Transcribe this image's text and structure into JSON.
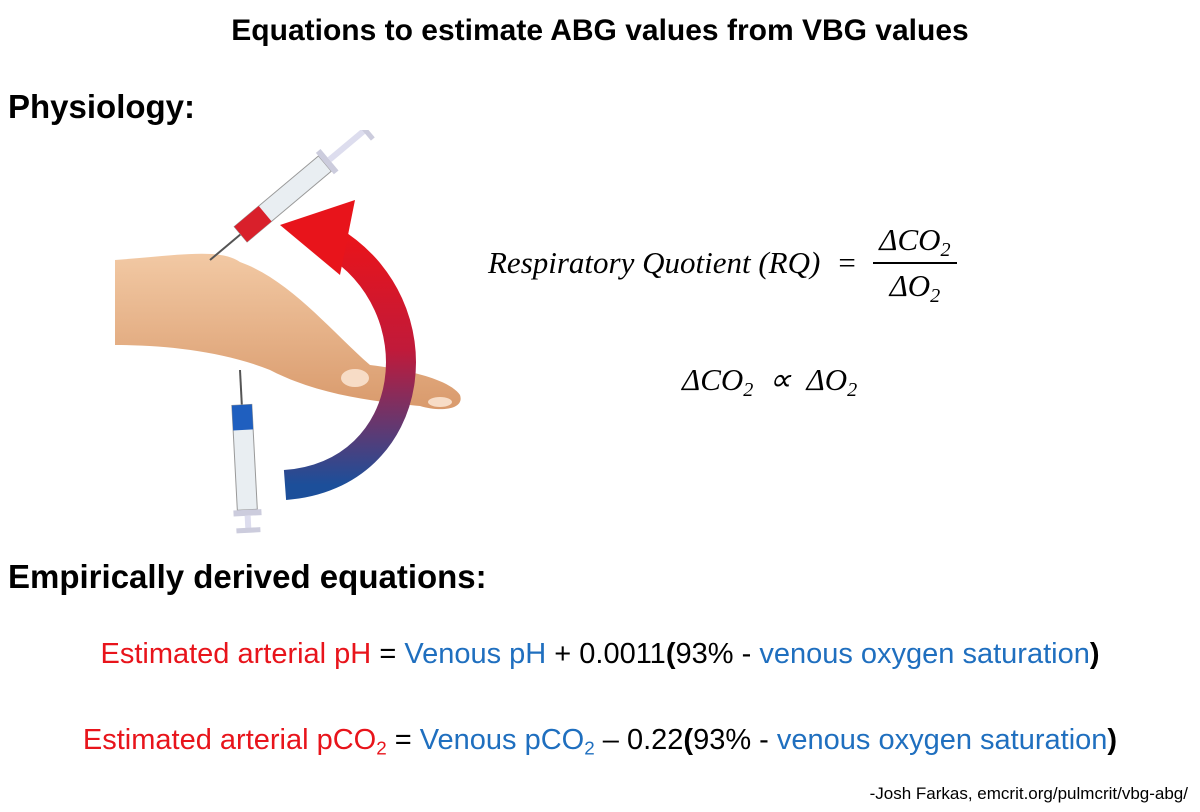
{
  "title": "Equations to estimate ABG values from VBG values",
  "physiology": {
    "heading": "Physiology:",
    "rq": {
      "lhs": [
        {
          "text": "Respiratory Quotient (RQ)"
        }
      ],
      "equals": "=",
      "numerator": [
        {
          "text": "ΔCO"
        },
        {
          "text": "2",
          "sub": true
        }
      ],
      "denominator": [
        {
          "text": "ΔO"
        },
        {
          "text": "2",
          "sub": true
        }
      ]
    },
    "proportionality": [
      {
        "text": "ΔCO"
      },
      {
        "text": "2",
        "sub": true
      },
      {
        "text": "  ∝  "
      },
      {
        "text": "ΔO"
      },
      {
        "text": "2",
        "sub": true
      }
    ]
  },
  "empirical": {
    "heading": "Empirically derived equations:",
    "equations": [
      {
        "parts": [
          {
            "text": "Estimated arterial pH",
            "color": "#e8141b"
          },
          {
            "text": " = ",
            "color": "#000000"
          },
          {
            "text": "Venous pH",
            "color": "#1f6fbf"
          },
          {
            "text": " + 0.0011",
            "color": "#000000"
          },
          {
            "text": "(",
            "color": "#000000",
            "bold": true
          },
          {
            "text": "93% - ",
            "color": "#000000"
          },
          {
            "text": "venous oxygen saturation",
            "color": "#1f6fbf"
          },
          {
            "text": ")",
            "color": "#000000",
            "bold": true
          }
        ]
      },
      {
        "parts": [
          {
            "text": "Estimated arterial pCO",
            "color": "#e8141b"
          },
          {
            "text": "2",
            "color": "#e8141b",
            "sub": true
          },
          {
            "text": " = ",
            "color": "#000000"
          },
          {
            "text": "Venous pCO",
            "color": "#1f6fbf"
          },
          {
            "text": "2",
            "color": "#1f6fbf",
            "sub": true
          },
          {
            "text": " – 0.22",
            "color": "#000000"
          },
          {
            "text": "(",
            "color": "#000000",
            "bold": true
          },
          {
            "text": "93% - ",
            "color": "#000000"
          },
          {
            "text": "venous oxygen saturation",
            "color": "#1f6fbf"
          },
          {
            "text": ")",
            "color": "#000000",
            "bold": true
          }
        ]
      }
    ]
  },
  "credit": "-Josh Farkas, emcrit.org/pulmcrit/vbg-abg/"
}
